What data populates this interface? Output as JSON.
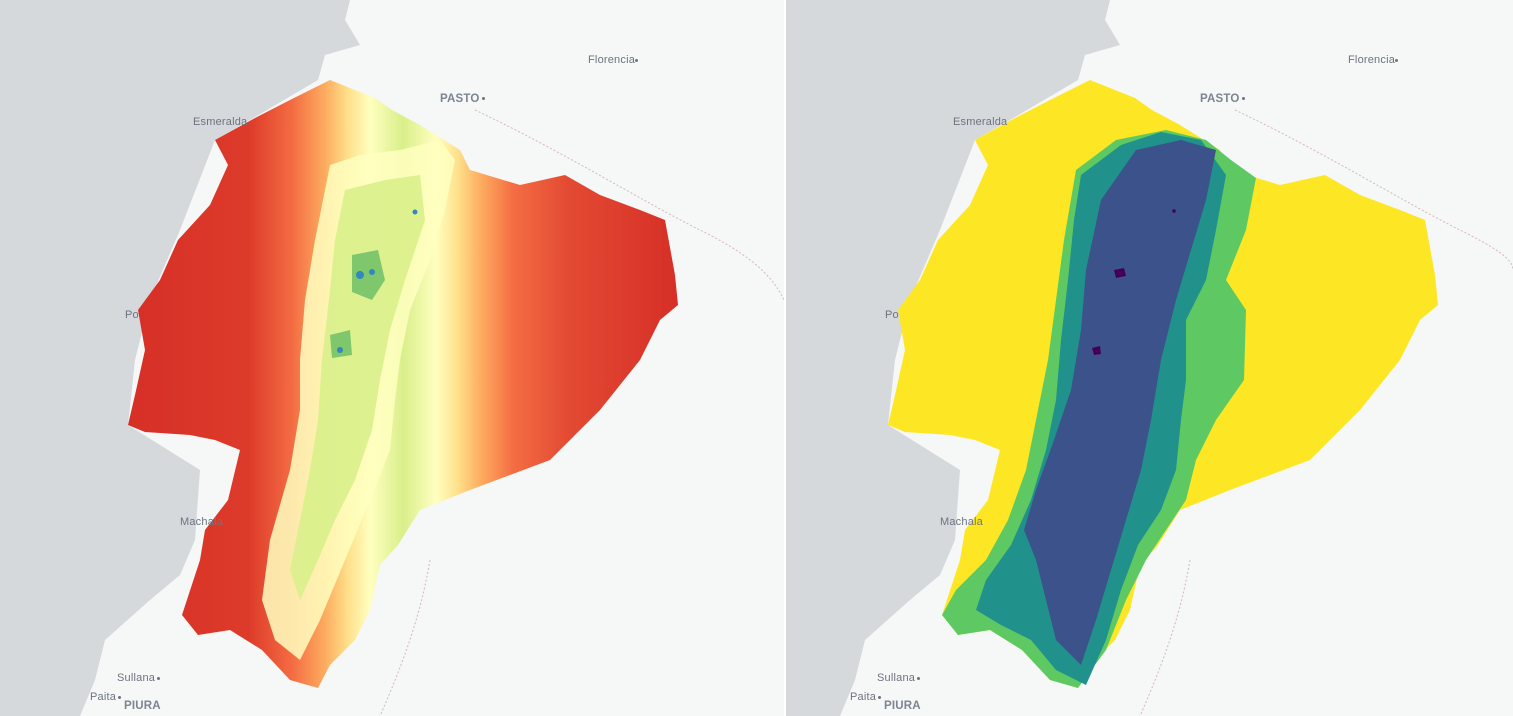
{
  "maps": [
    {
      "name": "elevation-map",
      "palette": [
        "#d62f27",
        "#f46d43",
        "#fdae61",
        "#fee08b",
        "#ffffbf",
        "#d9ef8b",
        "#a6d96a",
        "#66bd63",
        "#3288bd"
      ]
    },
    {
      "name": "classified-map",
      "palette": [
        "#fde725",
        "#5ec962",
        "#21918c",
        "#3b528b",
        "#440154"
      ]
    }
  ],
  "places": {
    "florencia": "Florencia",
    "pasto": "PASTO",
    "esmeraldas": "Esmeralda",
    "portoviejo": "Po",
    "machala": "Machala",
    "sullana": "Sullana",
    "paita": "Paita",
    "piura": "PIURA"
  },
  "colors": {
    "ocean": "#d5d9dc",
    "land": "#f6f7f7",
    "border": "#d7b7b7"
  }
}
